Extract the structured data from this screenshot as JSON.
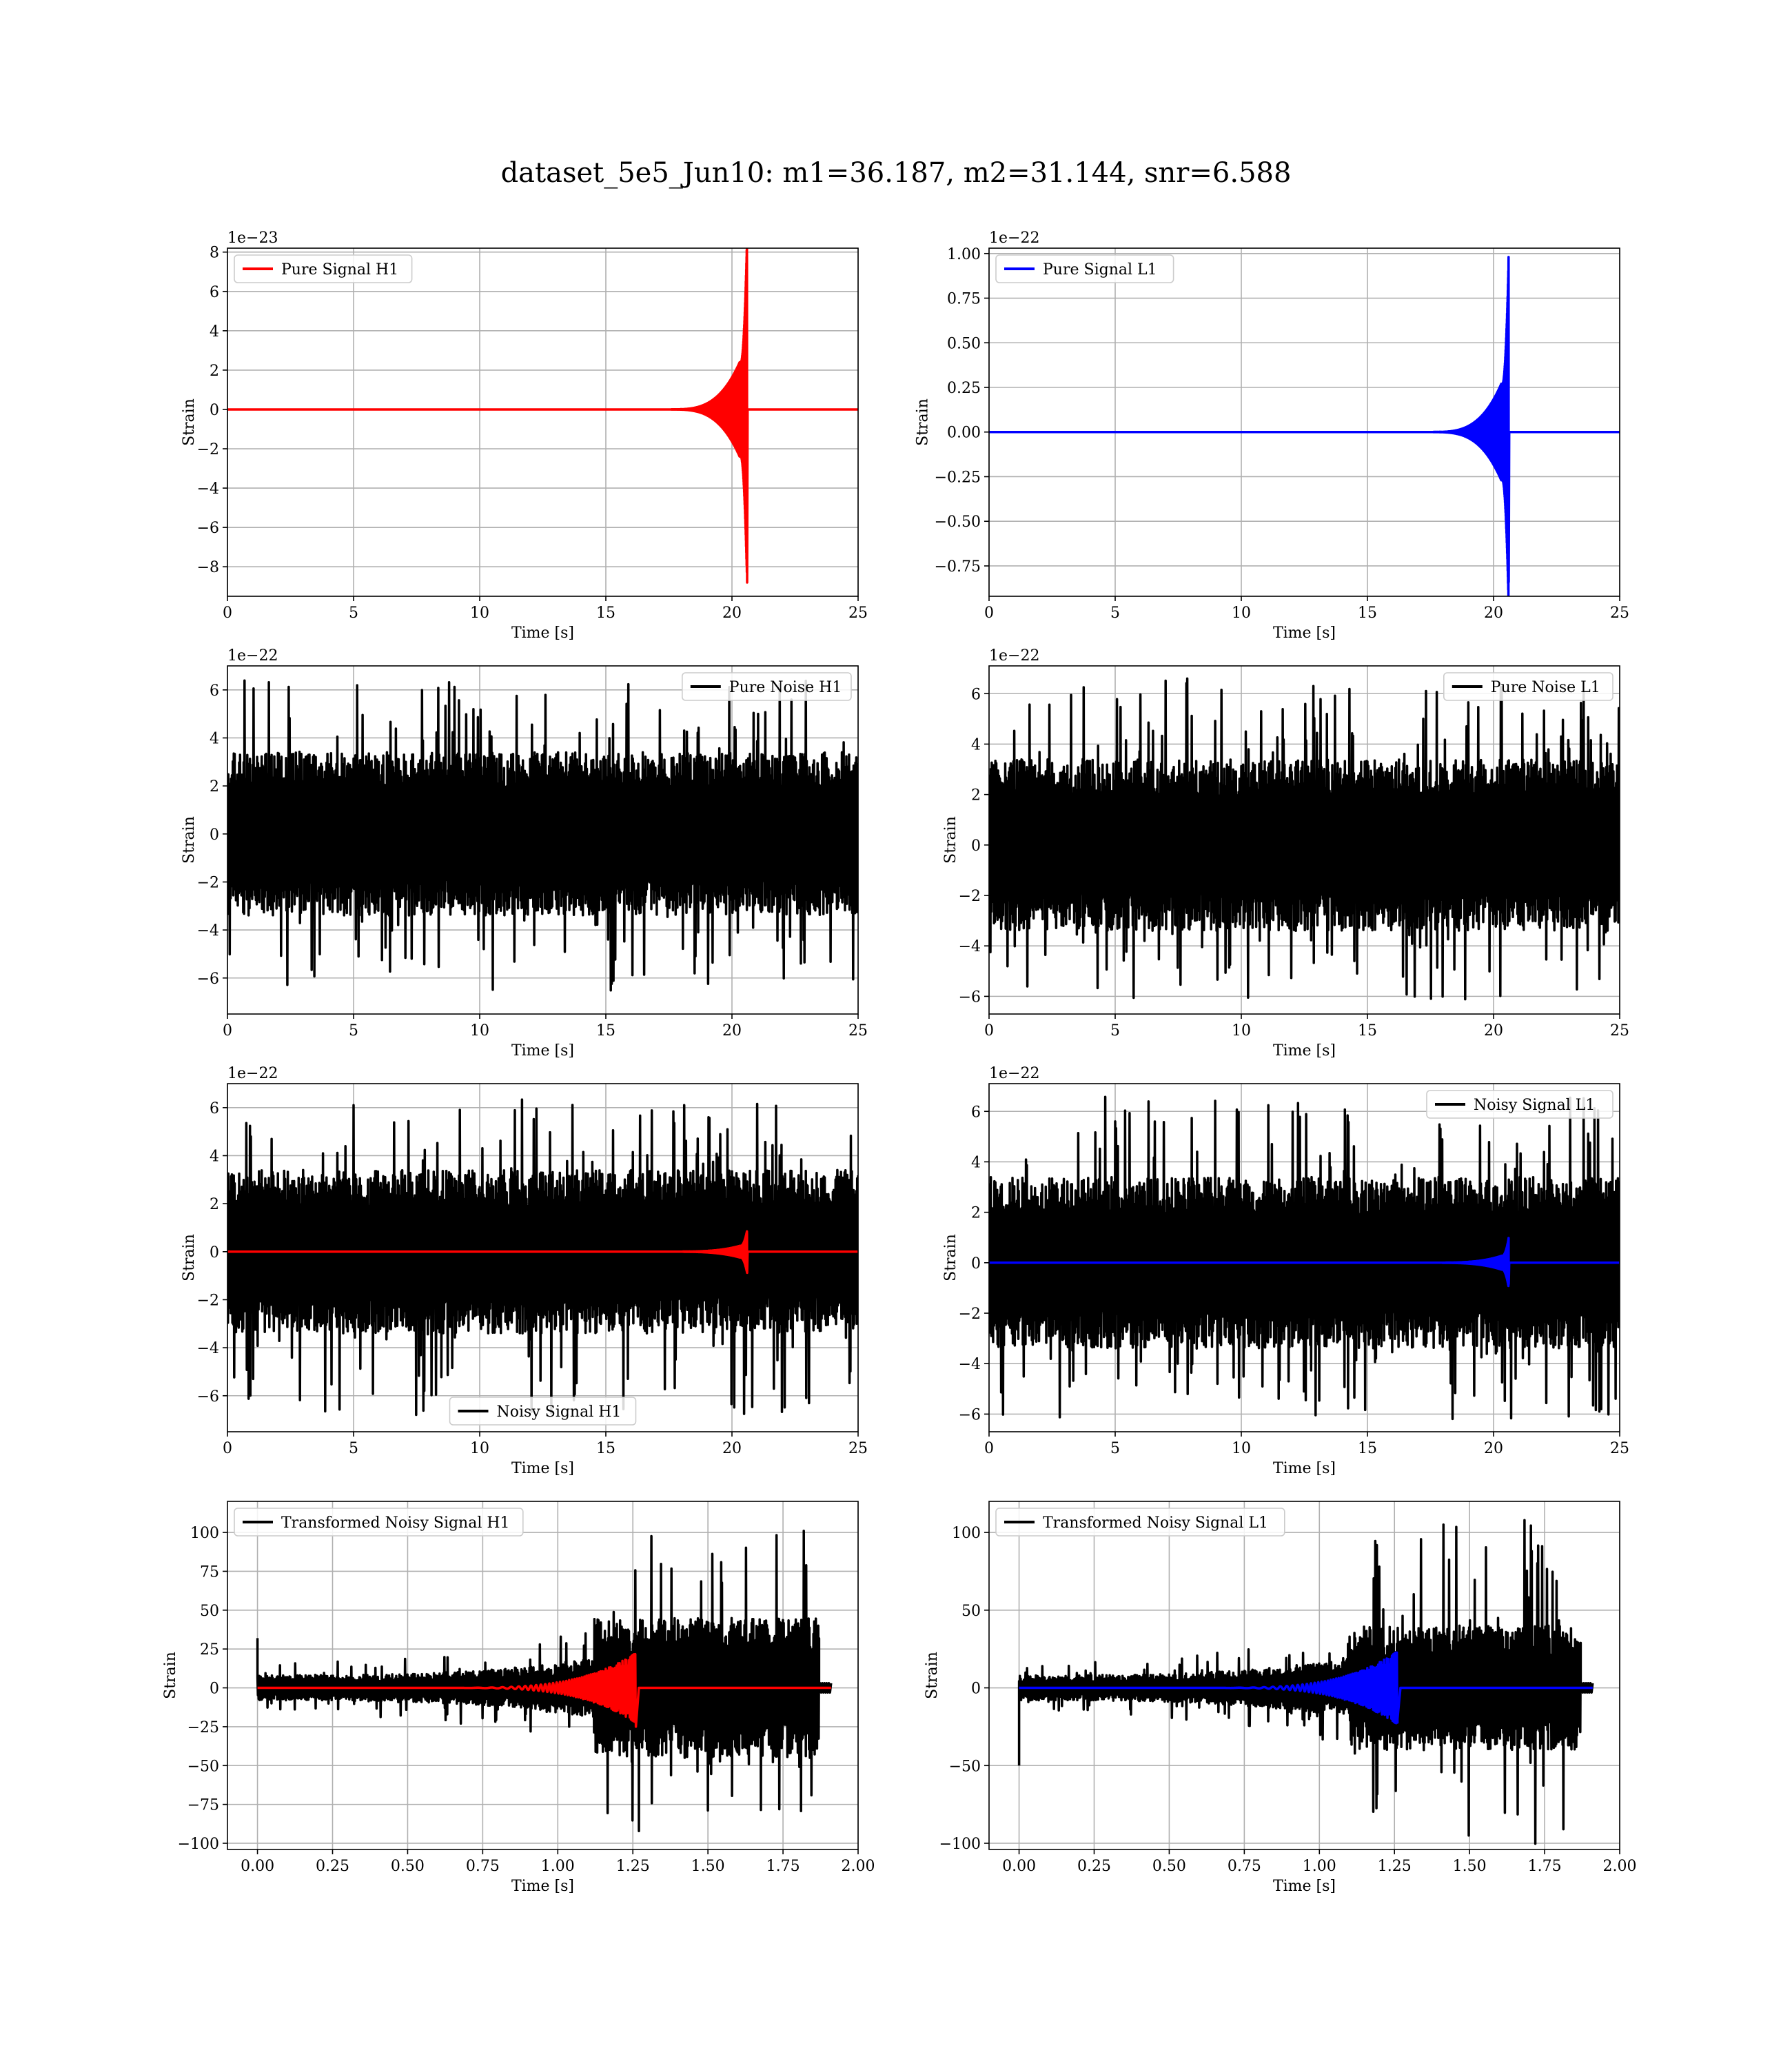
{
  "suptitle": "dataset_5e5_Jun10: m1=36.187, m2=31.144, snr=6.588",
  "colors": {
    "h1_signal": "#ff0000",
    "l1_signal": "#0000ff",
    "noise": "#000000",
    "grid": "#b0b0b0"
  },
  "chart_data": [
    {
      "id": "pure-signal-h1",
      "type": "line",
      "xlabel": "Time [s]",
      "ylabel": "Strain",
      "offset_text": "1e−23",
      "xlim": [
        0,
        25
      ],
      "ylim": [
        -9.5,
        8.2
      ],
      "xticks": [
        0,
        5,
        10,
        15,
        20,
        25
      ],
      "xtick_labels": [
        "0",
        "5",
        "10",
        "15",
        "20",
        "25"
      ],
      "yticks": [
        8,
        6,
        4,
        2,
        0,
        -2,
        -4,
        -6,
        -8
      ],
      "ytick_labels": [
        "8",
        "6",
        "4",
        "2",
        "0",
        "−2",
        "−4",
        "−6",
        "−8"
      ],
      "grid": true,
      "legend_position": "upper left",
      "series": [
        {
          "name": "Pure Signal H1",
          "kind": "chirp",
          "color": "#ff0000",
          "t_start": 0,
          "t_merge": 20.6,
          "t_end": 25,
          "peak_pos": 7.5,
          "peak_neg": -8.8,
          "inspiral_amp": 2.4
        }
      ]
    },
    {
      "id": "pure-signal-l1",
      "type": "line",
      "xlabel": "Time [s]",
      "ylabel": "Strain",
      "offset_text": "1e−22",
      "xlim": [
        0,
        25
      ],
      "ylim": [
        -0.92,
        1.03
      ],
      "xticks": [
        0,
        5,
        10,
        15,
        20,
        25
      ],
      "xtick_labels": [
        "0",
        "5",
        "10",
        "15",
        "20",
        "25"
      ],
      "yticks": [
        1.0,
        0.75,
        0.5,
        0.25,
        0.0,
        -0.25,
        -0.5,
        -0.75
      ],
      "ytick_labels": [
        "1.00",
        "0.75",
        "0.50",
        "0.25",
        "0.00",
        "−0.25",
        "−0.50",
        "−0.75"
      ],
      "grid": true,
      "legend_position": "upper left",
      "series": [
        {
          "name": "Pure Signal L1",
          "kind": "chirp",
          "color": "#0000ff",
          "t_start": 0,
          "t_merge": 20.6,
          "t_end": 25,
          "peak_pos": 0.98,
          "peak_neg": -0.84,
          "inspiral_amp": 0.27
        }
      ]
    },
    {
      "id": "pure-noise-h1",
      "type": "line",
      "xlabel": "Time [s]",
      "ylabel": "Strain",
      "offset_text": "1e−22",
      "xlim": [
        0,
        25
      ],
      "ylim": [
        -7.5,
        7.0
      ],
      "xticks": [
        0,
        5,
        10,
        15,
        20,
        25
      ],
      "xtick_labels": [
        "0",
        "5",
        "10",
        "15",
        "20",
        "25"
      ],
      "yticks": [
        6,
        4,
        2,
        0,
        -2,
        -4,
        -6
      ],
      "ytick_labels": [
        "6",
        "4",
        "2",
        "0",
        "−2",
        "−4",
        "−6"
      ],
      "grid": true,
      "legend_position": "upper right",
      "series": [
        {
          "name": "Pure Noise H1",
          "kind": "noise",
          "color": "#000000",
          "t_start": 0,
          "t_end": 25,
          "band": 3.4,
          "max": 6.4,
          "min": -6.8
        }
      ]
    },
    {
      "id": "pure-noise-l1",
      "type": "line",
      "xlabel": "Time [s]",
      "ylabel": "Strain",
      "offset_text": "1e−22",
      "xlim": [
        0,
        25
      ],
      "ylim": [
        -6.7,
        7.1
      ],
      "xticks": [
        0,
        5,
        10,
        15,
        20,
        25
      ],
      "xtick_labels": [
        "0",
        "5",
        "10",
        "15",
        "20",
        "25"
      ],
      "yticks": [
        6,
        4,
        2,
        0,
        -2,
        -4,
        -6
      ],
      "ytick_labels": [
        "6",
        "4",
        "2",
        "0",
        "−2",
        "−4",
        "−6"
      ],
      "grid": true,
      "legend_position": "upper right",
      "series": [
        {
          "name": "Pure Noise L1",
          "kind": "noise",
          "color": "#000000",
          "t_start": 0,
          "t_end": 25,
          "band": 3.4,
          "max": 6.6,
          "min": -6.2
        }
      ]
    },
    {
      "id": "noisy-signal-h1",
      "type": "line",
      "xlabel": "Time [s]",
      "ylabel": "Strain",
      "offset_text": "1e−22",
      "xlim": [
        0,
        25
      ],
      "ylim": [
        -7.5,
        7.0
      ],
      "xticks": [
        0,
        5,
        10,
        15,
        20,
        25
      ],
      "xtick_labels": [
        "0",
        "5",
        "10",
        "15",
        "20",
        "25"
      ],
      "yticks": [
        6,
        4,
        2,
        0,
        -2,
        -4,
        -6
      ],
      "ytick_labels": [
        "6",
        "4",
        "2",
        "0",
        "−2",
        "−4",
        "−6"
      ],
      "grid": true,
      "legend_position": "lower center",
      "series": [
        {
          "name": "Noisy Signal H1",
          "kind": "noise",
          "color": "#000000",
          "t_start": 0,
          "t_end": 25,
          "band": 3.4,
          "max": 6.4,
          "min": -6.8
        },
        {
          "name": "",
          "kind": "chirp",
          "color": "#ff0000",
          "t_start": 0,
          "t_merge": 20.6,
          "t_end": 25,
          "peak_pos": 0.75,
          "peak_neg": -0.88,
          "inspiral_amp": 0.24
        }
      ]
    },
    {
      "id": "noisy-signal-l1",
      "type": "line",
      "xlabel": "Time [s]",
      "ylabel": "Strain",
      "offset_text": "1e−22",
      "xlim": [
        0,
        25
      ],
      "ylim": [
        -6.7,
        7.1
      ],
      "xticks": [
        0,
        5,
        10,
        15,
        20,
        25
      ],
      "xtick_labels": [
        "0",
        "5",
        "10",
        "15",
        "20",
        "25"
      ],
      "yticks": [
        6,
        4,
        2,
        0,
        -2,
        -4,
        -6
      ],
      "ytick_labels": [
        "6",
        "4",
        "2",
        "0",
        "−2",
        "−4",
        "−6"
      ],
      "grid": true,
      "legend_position": "upper right",
      "series": [
        {
          "name": "Noisy Signal L1",
          "kind": "noise",
          "color": "#000000",
          "t_start": 0,
          "t_end": 25,
          "band": 3.4,
          "max": 6.6,
          "min": -6.2
        },
        {
          "name": "",
          "kind": "chirp",
          "color": "#0000ff",
          "t_start": 0,
          "t_merge": 20.6,
          "t_end": 25,
          "peak_pos": 0.98,
          "peak_neg": -0.84,
          "inspiral_amp": 0.27
        }
      ]
    },
    {
      "id": "transformed-noisy-signal-h1",
      "type": "line",
      "xlabel": "Time [s]",
      "ylabel": "Strain",
      "offset_text": "",
      "xlim": [
        -0.1,
        2.0
      ],
      "ylim": [
        -104,
        120
      ],
      "xticks": [
        0,
        0.25,
        0.5,
        0.75,
        1.0,
        1.25,
        1.5,
        1.75,
        2.0
      ],
      "xtick_labels": [
        "0.00",
        "0.25",
        "0.50",
        "0.75",
        "1.00",
        "1.25",
        "1.50",
        "1.75",
        "2.00"
      ],
      "yticks": [
        100,
        75,
        50,
        25,
        0,
        -25,
        -50,
        -75,
        -100
      ],
      "ytick_labels": [
        "100",
        "75",
        "50",
        "25",
        "0",
        "−25",
        "−50",
        "−75",
        "−100"
      ],
      "grid": true,
      "legend_position": "upper left",
      "series": [
        {
          "name": "Transformed Noisy Signal H1",
          "kind": "whitened",
          "color": "#000000",
          "t_start": 0,
          "t_jump": 1.12,
          "t_end": 1.87,
          "t_tail": 1.91,
          "low_band": 8,
          "high_band": 45,
          "max": 105,
          "min": -95,
          "spike_start": 32
        },
        {
          "name": "",
          "kind": "oscillation",
          "color": "#ff0000",
          "t_start": 0.55,
          "t_merge": 1.26,
          "t_end": 1.91,
          "peak_pos": 20,
          "peak_neg": -25
        }
      ]
    },
    {
      "id": "transformed-noisy-signal-l1",
      "type": "line",
      "xlabel": "Time [s]",
      "ylabel": "Strain",
      "offset_text": "",
      "xlim": [
        -0.1,
        2.0
      ],
      "ylim": [
        -104,
        120
      ],
      "xticks": [
        0,
        0.25,
        0.5,
        0.75,
        1.0,
        1.25,
        1.5,
        1.75,
        2.0
      ],
      "xtick_labels": [
        "0.00",
        "0.25",
        "0.50",
        "0.75",
        "1.00",
        "1.25",
        "1.50",
        "1.75",
        "2.00"
      ],
      "yticks": [
        100,
        50,
        0,
        -50,
        -100
      ],
      "ytick_labels": [
        "100",
        "50",
        "0",
        "−50",
        "−100"
      ],
      "grid": true,
      "legend_position": "upper left",
      "series": [
        {
          "name": "Transformed Noisy Signal L1",
          "kind": "whitened",
          "color": "#000000",
          "t_start": 0,
          "t_jump": 1.1,
          "t_end": 1.87,
          "t_tail": 1.91,
          "low_band": 8,
          "high_band": 40,
          "max": 108,
          "min": -101,
          "spike_start": -50
        },
        {
          "name": "",
          "kind": "oscillation",
          "color": "#0000ff",
          "t_start": 0.55,
          "t_merge": 1.26,
          "t_end": 1.91,
          "peak_pos": 27,
          "peak_neg": -20
        }
      ]
    }
  ]
}
